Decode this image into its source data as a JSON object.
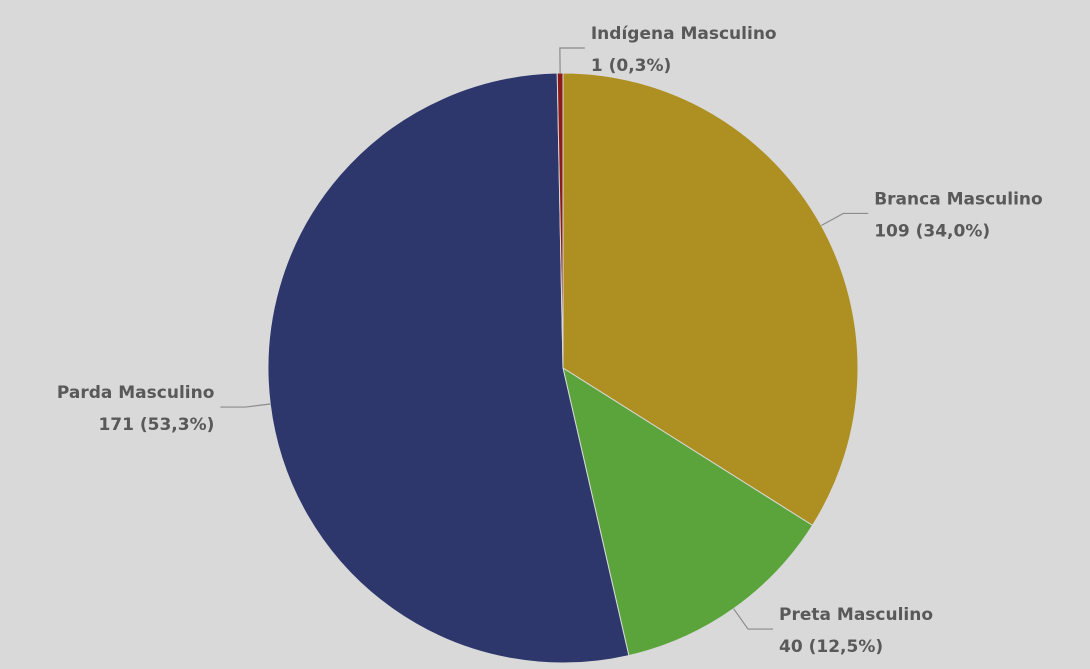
{
  "chart_data": {
    "type": "pie",
    "categories": [
      "Branca Masculino",
      "Preta Masculino",
      "Parda Masculino",
      "Indígena Masculino"
    ],
    "values": [
      109,
      40,
      171,
      1
    ],
    "value_labels": [
      "109 (34,0%)",
      "40 (12,5%)",
      "171 (53,3%)",
      "1 (0,3%)"
    ],
    "colors": [
      "#ae8f22",
      "#5ba33b",
      "#2e376b",
      "#8b1a1a"
    ]
  }
}
